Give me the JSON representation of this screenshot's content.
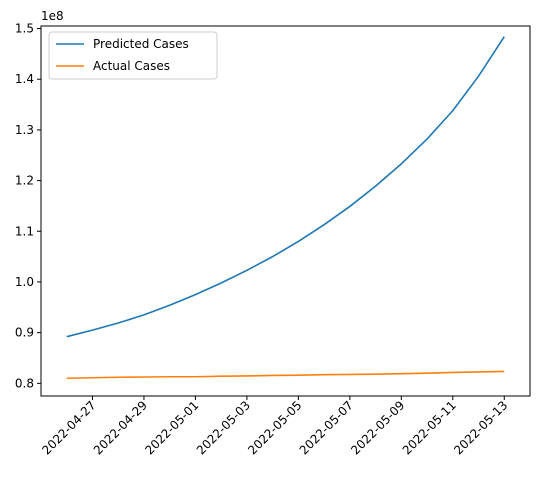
{
  "chart_data": {
    "type": "line",
    "title": "",
    "xlabel": "",
    "ylabel": "",
    "y_offset_label": "1e8",
    "y_scale": 100000000,
    "x": [
      "2022-04-26",
      "2022-04-27",
      "2022-04-28",
      "2022-04-29",
      "2022-04-30",
      "2022-05-01",
      "2022-05-02",
      "2022-05-03",
      "2022-05-04",
      "2022-05-05",
      "2022-05-06",
      "2022-05-07",
      "2022-05-08",
      "2022-05-09",
      "2022-05-10",
      "2022-05-11",
      "2022-05-12",
      "2022-05-13"
    ],
    "series": [
      {
        "name": "Predicted Cases",
        "color": "#1f77b4",
        "values": [
          89200000,
          90500000,
          91900000,
          93500000,
          95400000,
          97500000,
          99800000,
          102300000,
          105000000,
          108000000,
          111300000,
          114900000,
          118900000,
          123300000,
          128200000,
          133800000,
          140600000,
          148400000
        ]
      },
      {
        "name": "Actual Cases",
        "color": "#ff7f0e",
        "values": [
          81000000,
          81100000,
          81200000,
          81250000,
          81300000,
          81300000,
          81400000,
          81450000,
          81550000,
          81600000,
          81700000,
          81750000,
          81800000,
          81900000,
          82000000,
          82150000,
          82250000,
          82350000
        ]
      }
    ],
    "x_ticks": [
      "2022-04-27",
      "2022-04-29",
      "2022-05-01",
      "2022-05-03",
      "2022-05-05",
      "2022-05-07",
      "2022-05-09",
      "2022-05-11",
      "2022-05-13"
    ],
    "y_ticks": [
      "0.8",
      "0.9",
      "1.0",
      "1.1",
      "1.2",
      "1.3",
      "1.4",
      "1.5"
    ],
    "y_tick_values": [
      0.8,
      0.9,
      1.0,
      1.1,
      1.2,
      1.3,
      1.4,
      1.5
    ],
    "ylim": [
      77500000,
      150500000
    ],
    "xlim": [
      "2022-04-25",
      "2022-05-14"
    ],
    "grid": false,
    "legend_position": "top-left"
  }
}
